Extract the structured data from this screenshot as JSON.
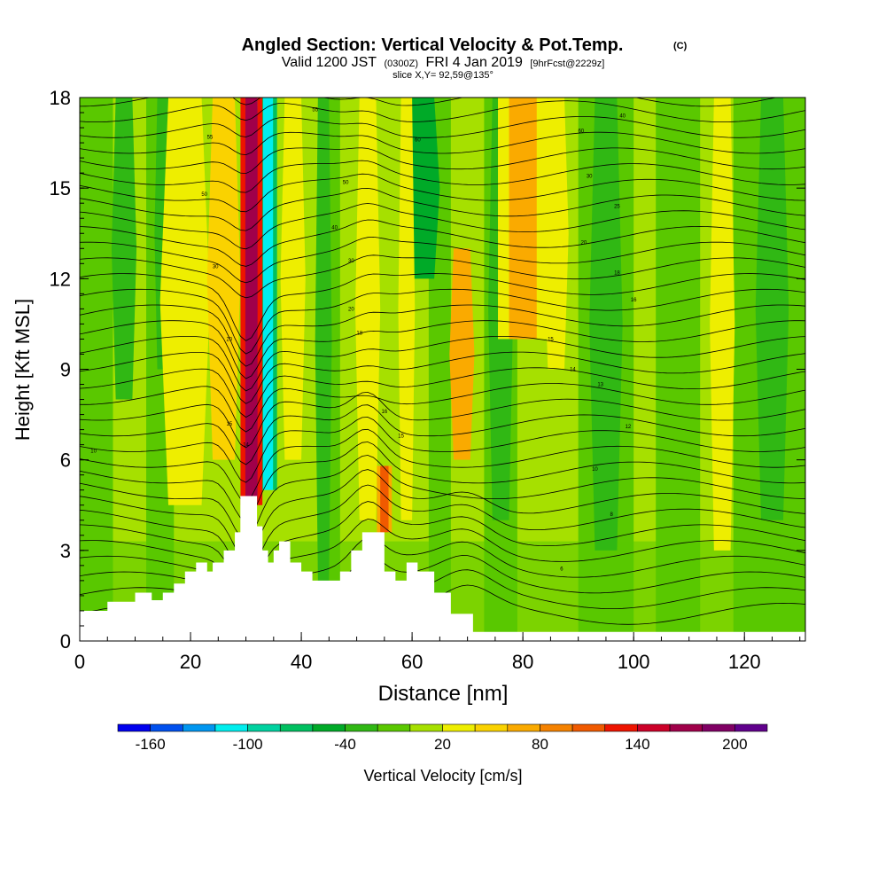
{
  "chart_data": {
    "type": "heatmap",
    "title": "Angled Section: Vertical Velocity & Pot.Temp.",
    "title_mark": "(C)",
    "subtitle": {
      "valid": "Valid 1200 JST",
      "utc": "(0300Z)",
      "date": "FRI 4 Jan 2019",
      "forecast": "[9hrFcst@2229z]"
    },
    "slice": "slice X,Y= 92,59@135°",
    "xlabel": "Distance [nm]",
    "ylabel": "Height [Kft MSL]",
    "xlim": [
      0,
      131
    ],
    "ylim": [
      0,
      18
    ],
    "x_ticks": [
      "0",
      "20",
      "40",
      "60",
      "80",
      "100",
      "120"
    ],
    "y_ticks": [
      "0",
      "3",
      "6",
      "9",
      "12",
      "15",
      "18"
    ],
    "colorbar": {
      "label": "Vertical Velocity [cm/s]",
      "tick_labels": [
        "-160",
        "-100",
        "-40",
        "20",
        "80",
        "140",
        "200"
      ],
      "tick_values": [
        -160,
        -100,
        -40,
        20,
        80,
        140,
        200
      ],
      "levels": [
        -180,
        -160,
        -140,
        -120,
        -100,
        -80,
        -60,
        -40,
        -20,
        0,
        20,
        40,
        60,
        80,
        100,
        120,
        140,
        160,
        180,
        200,
        220
      ],
      "colors": [
        "#0000ee",
        "#0050ee",
        "#0096f0",
        "#00eeee",
        "#00d2a0",
        "#00c060",
        "#00aa28",
        "#30b814",
        "#5ac800",
        "#a6e000",
        "#eeee00",
        "#fad200",
        "#faaa00",
        "#f58200",
        "#f05a00",
        "#ee1400",
        "#cc0028",
        "#a0004a",
        "#800064",
        "#60008c"
      ]
    },
    "terrain_kft": [
      [
        0,
        1.0
      ],
      [
        5,
        1.3
      ],
      [
        10,
        1.6
      ],
      [
        13,
        1.35
      ],
      [
        15,
        1.6
      ],
      [
        17,
        1.9
      ],
      [
        19,
        2.3
      ],
      [
        21,
        2.6
      ],
      [
        23,
        2.3
      ],
      [
        24,
        2.6
      ],
      [
        26,
        3.0
      ],
      [
        28,
        3.6
      ],
      [
        29,
        4.8
      ],
      [
        31,
        4.8
      ],
      [
        32,
        3.8
      ],
      [
        33,
        3.0
      ],
      [
        34,
        2.6
      ],
      [
        35,
        3.0
      ],
      [
        36,
        3.3
      ],
      [
        38,
        2.6
      ],
      [
        40,
        2.3
      ],
      [
        42,
        2.0
      ],
      [
        45,
        2.0
      ],
      [
        47,
        2.3
      ],
      [
        49,
        3.0
      ],
      [
        51,
        3.6
      ],
      [
        53,
        3.6
      ],
      [
        55,
        2.3
      ],
      [
        57,
        2.0
      ],
      [
        59,
        2.6
      ],
      [
        61,
        2.3
      ],
      [
        64,
        1.6
      ],
      [
        67,
        0.9
      ],
      [
        71,
        0.3
      ],
      [
        131,
        0.3
      ]
    ],
    "updraft_bands": [
      {
        "x": 19,
        "w": 6,
        "v": 30,
        "top": 18,
        "bottom": 4.5
      },
      {
        "x": 26,
        "w": 4,
        "v": 45,
        "top": 18,
        "bottom": 6
      },
      {
        "x": 31,
        "w": 2.2,
        "v": 165,
        "top": 18,
        "bottom": 4.5
      },
      {
        "x": 38.5,
        "w": 3,
        "v": 35,
        "top": 18,
        "bottom": 6
      },
      {
        "x": 52,
        "w": 3,
        "v": 35,
        "top": 18,
        "bottom": 4
      },
      {
        "x": 55,
        "w": 1.5,
        "v": 110,
        "top": 5.8,
        "bottom": 3.6
      },
      {
        "x": 59,
        "w": 2,
        "v": 25,
        "top": 18,
        "bottom": 4
      },
      {
        "x": 69,
        "w": 3,
        "v": 60,
        "top": 13,
        "bottom": 6
      },
      {
        "x": 80,
        "w": 5,
        "v": 65,
        "top": 18,
        "bottom": 10
      },
      {
        "x": 86,
        "w": 3,
        "v": 30,
        "top": 18,
        "bottom": 9
      },
      {
        "x": 116,
        "w": 3,
        "v": 22,
        "top": 18,
        "bottom": 3
      }
    ],
    "downdraft_bands": [
      {
        "x": 8,
        "w": 3,
        "v": -30,
        "top": 18,
        "bottom": 8
      },
      {
        "x": 15,
        "w": 2,
        "v": -40,
        "top": 18,
        "bottom": 9
      },
      {
        "x": 34,
        "w": 1.8,
        "v": -120,
        "top": 18,
        "bottom": 5
      },
      {
        "x": 44,
        "w": 2,
        "v": -30,
        "top": 18,
        "bottom": 2
      },
      {
        "x": 62,
        "w": 4,
        "v": -45,
        "top": 18,
        "bottom": 12
      },
      {
        "x": 76,
        "w": 3,
        "v": -25,
        "top": 18,
        "bottom": 4
      },
      {
        "x": 95,
        "w": 4,
        "v": -25,
        "top": 18,
        "bottom": 3
      },
      {
        "x": 125,
        "w": 4,
        "v": -30,
        "top": 18,
        "bottom": 4
      }
    ],
    "theta_contour_labels": [
      {
        "x": 2.5,
        "y": 6.3,
        "t": "10"
      },
      {
        "x": 23.5,
        "y": 16.7,
        "t": "55"
      },
      {
        "x": 22.5,
        "y": 14.8,
        "t": "50"
      },
      {
        "x": 24.5,
        "y": 12.4,
        "t": "30"
      },
      {
        "x": 27,
        "y": 10.0,
        "t": "20"
      },
      {
        "x": 27,
        "y": 7.2,
        "t": "15"
      },
      {
        "x": 30,
        "y": 6.5,
        "t": "14"
      },
      {
        "x": 42.5,
        "y": 17.6,
        "t": "55"
      },
      {
        "x": 48,
        "y": 15.2,
        "t": "50"
      },
      {
        "x": 46,
        "y": 13.7,
        "t": "40"
      },
      {
        "x": 49,
        "y": 12.6,
        "t": "30"
      },
      {
        "x": 49,
        "y": 11.0,
        "t": "20"
      },
      {
        "x": 50.5,
        "y": 10.2,
        "t": "18"
      },
      {
        "x": 55,
        "y": 7.6,
        "t": "16"
      },
      {
        "x": 58,
        "y": 6.8,
        "t": "15"
      },
      {
        "x": 61,
        "y": 16.6,
        "t": "60"
      },
      {
        "x": 90.5,
        "y": 16.9,
        "t": "60"
      },
      {
        "x": 98,
        "y": 17.4,
        "t": "40"
      },
      {
        "x": 92,
        "y": 15.4,
        "t": "30"
      },
      {
        "x": 97,
        "y": 14.4,
        "t": "25"
      },
      {
        "x": 91,
        "y": 13.2,
        "t": "20"
      },
      {
        "x": 97,
        "y": 12.2,
        "t": "18"
      },
      {
        "x": 100,
        "y": 11.3,
        "t": "16"
      },
      {
        "x": 85,
        "y": 10.0,
        "t": "15"
      },
      {
        "x": 89,
        "y": 9.0,
        "t": "14"
      },
      {
        "x": 94,
        "y": 8.5,
        "t": "13"
      },
      {
        "x": 99,
        "y": 7.1,
        "t": "12"
      },
      {
        "x": 93,
        "y": 5.7,
        "t": "10"
      },
      {
        "x": 96,
        "y": 4.2,
        "t": "8"
      },
      {
        "x": 87,
        "y": 2.4,
        "t": "6"
      }
    ]
  }
}
